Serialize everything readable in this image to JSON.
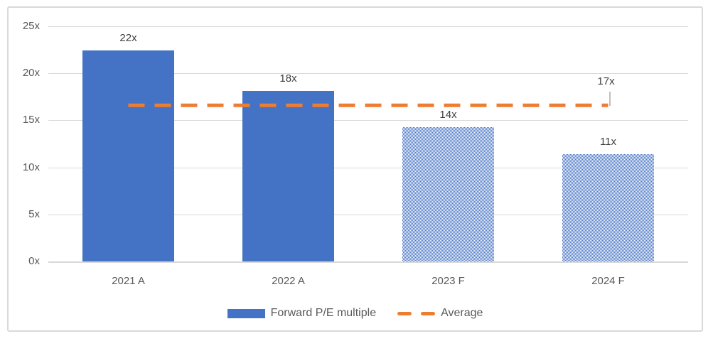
{
  "chart_data": {
    "type": "bar",
    "title": "",
    "categories": [
      "2021 A",
      "2022 A",
      "2023 F",
      "2024 F"
    ],
    "y_ticks": [
      {
        "label": "25x",
        "value": 25
      },
      {
        "label": "20x",
        "value": 20
      },
      {
        "label": "15x",
        "value": 15
      },
      {
        "label": "10x",
        "value": 10
      },
      {
        "label": "5x",
        "value": 5
      },
      {
        "label": "0x",
        "value": 0
      }
    ],
    "ylim": [
      0,
      25
    ],
    "grid": true,
    "legend_position": "bottom",
    "series": [
      {
        "name": "Forward P/E multiple",
        "type": "bar",
        "color": "#4472C4",
        "values": [
          22.4,
          18.1,
          14.3,
          11.4
        ],
        "data_labels": [
          "22x",
          "18x",
          "14x",
          "11x"
        ],
        "fill_styles": [
          "solid",
          "solid",
          "pattern",
          "pattern"
        ]
      },
      {
        "name": "Average",
        "type": "line",
        "line_style": "dashed",
        "color": "#ED7D31",
        "value": 16.6,
        "data_label": "17x",
        "spans": "from first category center to last category center"
      }
    ]
  },
  "legend": {
    "items": [
      {
        "label": "Forward P/E multiple",
        "marker": "bar-swatch",
        "color": "#4472C4"
      },
      {
        "label": "Average",
        "marker": "dash-swatch",
        "color": "#ED7D31"
      }
    ]
  },
  "colors": {
    "bar_blue": "#4472C4",
    "average_orange": "#ED7D31",
    "gridline": "#D9D9D9",
    "frame_border": "#D9D9D9",
    "axis_text": "#595959",
    "data_label_text": "#404040",
    "leader_line": "#BFBFBF",
    "background": "#FFFFFF"
  }
}
